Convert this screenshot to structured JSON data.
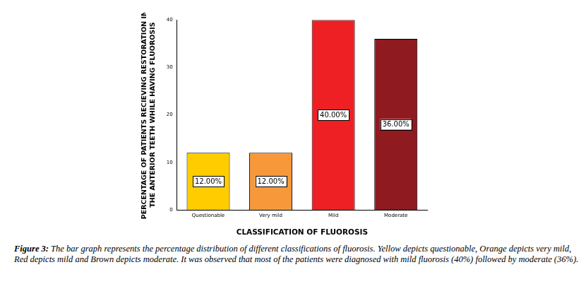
{
  "chart_data": {
    "type": "bar",
    "y_label": [
      "PERCENTAGE OF PATIENTS RECIEVING RESTORATION IN",
      "THE ANTERIOR TEETH WHILE HAVING FLUOROSIS"
    ],
    "x_label": "CLASSIFICATION OF FLUOROSIS",
    "categories": [
      "Questionable",
      "Very mild",
      "Mild",
      "Moderate"
    ],
    "values": [
      12,
      12,
      40,
      36
    ],
    "value_labels": [
      "12.00%",
      "12.00%",
      "40.00%",
      "36.00%"
    ],
    "colors": [
      "#ffcc00",
      "#f7993a",
      "#ee2024",
      "#8f1a1f"
    ],
    "ylim": [
      0,
      40
    ],
    "yticks": [
      0,
      10,
      20,
      30,
      40
    ],
    "grid": false,
    "data_labels": true,
    "caption_label": "Figure 3:",
    "caption": "The bar graph represents the percentage distribution of different classifications of fluorosis. Yellow depicts questionable, Orange depicts very mild, Red depicts mild and Brown depicts moderate. It was observed that most of the patients were diagnosed with mild fluorosis (40%) followed by moderate (36%)."
  }
}
